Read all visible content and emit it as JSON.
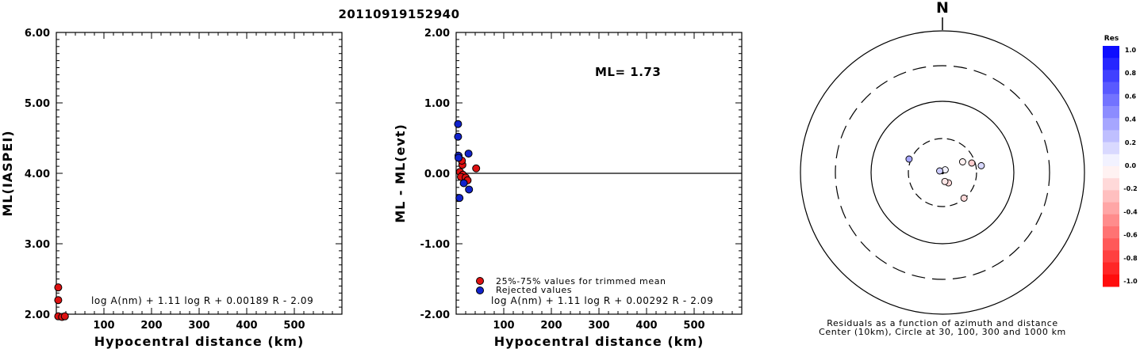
{
  "title": "20110919152940",
  "chart_data": [
    {
      "type": "scatter",
      "id": "ml-vs-distance",
      "ylabel": "ML(IASPEI)",
      "xlabel": "Hypocentral distance (km)",
      "xlim": [
        0,
        600
      ],
      "ylim": [
        2.0,
        6.0
      ],
      "xticks": [
        100,
        200,
        300,
        400,
        500
      ],
      "yticks": [
        "2.00",
        "3.00",
        "4.00",
        "5.00",
        "6.00"
      ],
      "formula": "log A(nm) + 1.11 log R + 0.00189 R - 2.09",
      "series": [
        {
          "color": "#dd1111",
          "points": [
            [
              4,
              2.38
            ],
            [
              4,
              2.2
            ],
            [
              4,
              1.97
            ],
            [
              12,
              1.96
            ],
            [
              18,
              1.97
            ]
          ]
        }
      ]
    },
    {
      "type": "scatter",
      "id": "residual-vs-distance",
      "ylabel": "ML - ML(evt)",
      "xlabel": "Hypocentral distance (km)",
      "xlim": [
        0,
        600
      ],
      "ylim": [
        -2.0,
        2.0
      ],
      "xticks": [
        100,
        200,
        300,
        400,
        500
      ],
      "yticks": [
        "-2.00",
        "-1.00",
        "0.00",
        "1.00",
        "2.00"
      ],
      "annotation": "ML= 1.73",
      "formula": "log A(nm) + 1.11 log R + 0.00292 R - 2.09",
      "legend": [
        {
          "label": "25%-75% values for trimmed mean",
          "color": "#dd1111"
        },
        {
          "label": "Rejected values",
          "color": "#1122cc"
        }
      ],
      "series": [
        {
          "name": "25%-75% values for trimmed mean",
          "color": "#dd1111",
          "points": [
            [
              13,
              0.12
            ],
            [
              8,
              0.02
            ],
            [
              14,
              -0.02
            ],
            [
              10,
              -0.05
            ],
            [
              20,
              -0.06
            ],
            [
              24,
              -0.1
            ],
            [
              42,
              0.07
            ],
            [
              12,
              0.18
            ]
          ]
        },
        {
          "name": "Rejected values",
          "color": "#1122cc",
          "points": [
            [
              4,
              0.7
            ],
            [
              4,
              0.52
            ],
            [
              5,
              0.25
            ],
            [
              26,
              0.28
            ],
            [
              5,
              0.22
            ],
            [
              16,
              -0.14
            ],
            [
              27,
              -0.23
            ],
            [
              7,
              -0.35
            ]
          ]
        }
      ]
    },
    {
      "type": "polar-scatter",
      "id": "azimuth-residuals",
      "north_label": "N",
      "caption_line1": "Residuals as a function of azimuth and distance",
      "caption_line2": "Center (10km), Circle at 30, 100, 300 and 1000 km",
      "colorbar_title": "Res",
      "colorbar_ticks": [
        "1.0",
        "0.8",
        "0.6",
        "0.4",
        "0.2",
        "0.0",
        "-0.2",
        "-0.4",
        "-0.6",
        "-0.8",
        "-1.0"
      ],
      "points": [
        {
          "azimuth_deg": 292,
          "distance_km": 26,
          "residual": 0.35
        },
        {
          "azimuth_deg": 72,
          "distance_km": 22,
          "residual": -0.2
        },
        {
          "azimuth_deg": 62,
          "distance_km": 17,
          "residual": -0.05
        },
        {
          "azimuth_deg": 80,
          "distance_km": 29,
          "residual": 0.15
        },
        {
          "azimuth_deg": 45,
          "distance_km": 6,
          "residual": 0.05
        },
        {
          "azimuth_deg": 300,
          "distance_km": 5,
          "residual": 0.2
        },
        {
          "azimuth_deg": 150,
          "distance_km": 12,
          "residual": -0.15
        },
        {
          "azimuth_deg": 165,
          "distance_km": 11,
          "residual": -0.1
        },
        {
          "azimuth_deg": 140,
          "distance_km": 24,
          "residual": -0.15
        }
      ]
    }
  ]
}
